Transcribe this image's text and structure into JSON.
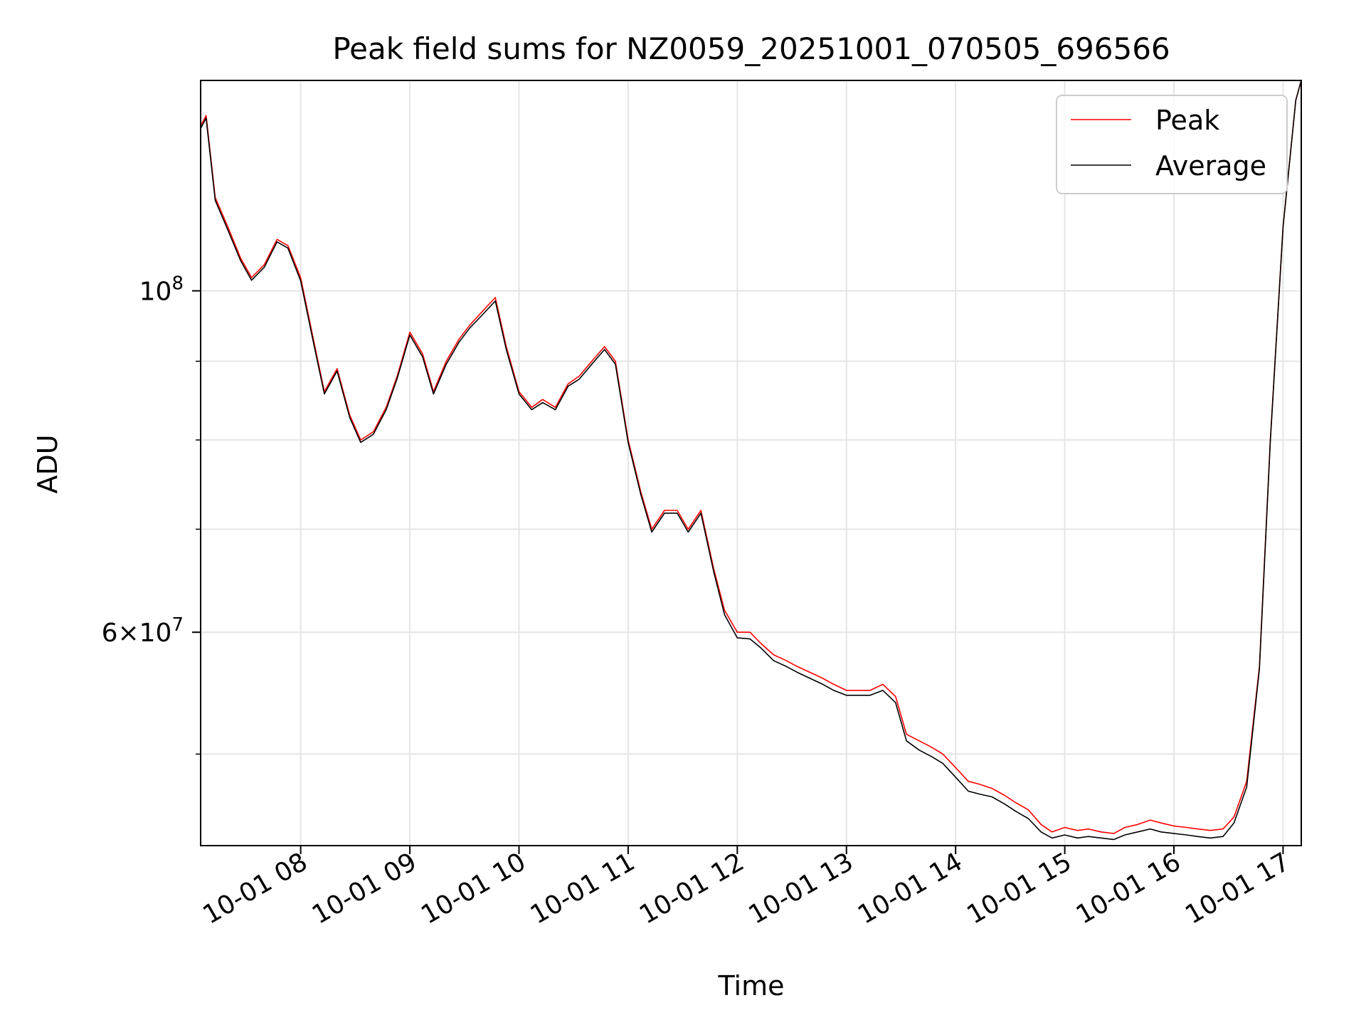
{
  "chart_data": {
    "type": "line",
    "title": "Peak field sums for NZ0059_20251001_070505_696566",
    "xlabel": "Time",
    "ylabel": "ADU",
    "y_scale": "log",
    "xlim": [
      "2025-10-01 07:05",
      "2025-10-01 17:10"
    ],
    "ylim": [
      43600000,
      137000000
    ],
    "x_tick_labels": [
      "10-01 08",
      "10-01 09",
      "10-01 10",
      "10-01 11",
      "10-01 12",
      "10-01 13",
      "10-01 14",
      "10-01 15",
      "10-01 16",
      "10-01 17"
    ],
    "y_tick_labels": [
      {
        "value": 100000000,
        "base": "10",
        "exp": "8",
        "coef": ""
      },
      {
        "value": 60000000,
        "base": "10",
        "exp": "7",
        "coef": "6×"
      }
    ],
    "y_minor_ticks": [
      50000000,
      70000000,
      80000000,
      90000000
    ],
    "grid": true,
    "legend_position": "top-right",
    "series": [
      {
        "name": "Peak",
        "color": "#ff0000",
        "x": [
          "2025-10-01 07:05",
          "2025-10-01 07:08",
          "2025-10-01 07:13",
          "2025-10-01 07:20",
          "2025-10-01 07:27",
          "2025-10-01 07:33",
          "2025-10-01 07:40",
          "2025-10-01 07:47",
          "2025-10-01 07:53",
          "2025-10-01 08:00",
          "2025-10-01 08:07",
          "2025-10-01 08:13",
          "2025-10-01 08:20",
          "2025-10-01 08:27",
          "2025-10-01 08:33",
          "2025-10-01 08:40",
          "2025-10-01 08:47",
          "2025-10-01 08:53",
          "2025-10-01 09:00",
          "2025-10-01 09:07",
          "2025-10-01 09:13",
          "2025-10-01 09:20",
          "2025-10-01 09:27",
          "2025-10-01 09:33",
          "2025-10-01 09:40",
          "2025-10-01 09:47",
          "2025-10-01 09:53",
          "2025-10-01 10:00",
          "2025-10-01 10:07",
          "2025-10-01 10:13",
          "2025-10-01 10:20",
          "2025-10-01 10:27",
          "2025-10-01 10:33",
          "2025-10-01 10:40",
          "2025-10-01 10:47",
          "2025-10-01 10:53",
          "2025-10-01 11:00",
          "2025-10-01 11:07",
          "2025-10-01 11:13",
          "2025-10-01 11:20",
          "2025-10-01 11:27",
          "2025-10-01 11:33",
          "2025-10-01 11:40",
          "2025-10-01 11:47",
          "2025-10-01 11:53",
          "2025-10-01 12:00",
          "2025-10-01 12:07",
          "2025-10-01 12:13",
          "2025-10-01 12:20",
          "2025-10-01 12:27",
          "2025-10-01 12:33",
          "2025-10-01 12:40",
          "2025-10-01 12:47",
          "2025-10-01 12:53",
          "2025-10-01 13:00",
          "2025-10-01 13:07",
          "2025-10-01 13:13",
          "2025-10-01 13:20",
          "2025-10-01 13:27",
          "2025-10-01 13:33",
          "2025-10-01 13:40",
          "2025-10-01 13:47",
          "2025-10-01 13:53",
          "2025-10-01 14:00",
          "2025-10-01 14:07",
          "2025-10-01 14:13",
          "2025-10-01 14:20",
          "2025-10-01 14:27",
          "2025-10-01 14:33",
          "2025-10-01 14:40",
          "2025-10-01 14:47",
          "2025-10-01 14:53",
          "2025-10-01 15:00",
          "2025-10-01 15:07",
          "2025-10-01 15:13",
          "2025-10-01 15:20",
          "2025-10-01 15:27",
          "2025-10-01 15:33",
          "2025-10-01 15:40",
          "2025-10-01 15:47",
          "2025-10-01 15:53",
          "2025-10-01 16:00",
          "2025-10-01 16:07",
          "2025-10-01 16:13",
          "2025-10-01 16:20",
          "2025-10-01 16:27",
          "2025-10-01 16:33",
          "2025-10-01 16:40",
          "2025-10-01 16:47",
          "2025-10-01 16:53",
          "2025-10-01 17:00",
          "2025-10-01 17:07",
          "2025-10-01 17:10"
        ],
        "y": [
          128000000,
          130000000,
          115000000,
          110000000,
          105000000,
          102000000,
          104000000,
          108000000,
          107000000,
          102000000,
          93000000,
          86000000,
          89000000,
          83000000,
          80000000,
          81000000,
          84000000,
          88000000,
          94000000,
          91000000,
          86000000,
          90000000,
          93000000,
          95000000,
          97000000,
          99000000,
          92000000,
          86000000,
          84000000,
          85000000,
          84000000,
          87000000,
          88000000,
          90000000,
          92000000,
          90000000,
          80000000,
          74000000,
          70000000,
          72000000,
          72000000,
          70000000,
          72000000,
          66000000,
          62000000,
          60000000,
          60000000,
          59000000,
          58000000,
          57500000,
          57000000,
          56500000,
          56000000,
          55500000,
          55000000,
          55000000,
          55000000,
          55500000,
          54500000,
          51500000,
          51000000,
          50500000,
          50000000,
          49000000,
          48000000,
          47800000,
          47500000,
          47000000,
          46500000,
          46000000,
          45000000,
          44500000,
          44800000,
          44600000,
          44700000,
          44500000,
          44400000,
          44800000,
          45000000,
          45300000,
          45100000,
          44900000,
          44800000,
          44700000,
          44600000,
          44700000,
          45500000,
          48000000,
          57000000,
          80000000,
          110000000,
          133000000,
          137000000
        ]
      },
      {
        "name": "Average",
        "color": "#000000",
        "x": [
          "2025-10-01 07:05",
          "2025-10-01 07:08",
          "2025-10-01 07:13",
          "2025-10-01 07:20",
          "2025-10-01 07:27",
          "2025-10-01 07:33",
          "2025-10-01 07:40",
          "2025-10-01 07:47",
          "2025-10-01 07:53",
          "2025-10-01 08:00",
          "2025-10-01 08:07",
          "2025-10-01 08:13",
          "2025-10-01 08:20",
          "2025-10-01 08:27",
          "2025-10-01 08:33",
          "2025-10-01 08:40",
          "2025-10-01 08:47",
          "2025-10-01 08:53",
          "2025-10-01 09:00",
          "2025-10-01 09:07",
          "2025-10-01 09:13",
          "2025-10-01 09:20",
          "2025-10-01 09:27",
          "2025-10-01 09:33",
          "2025-10-01 09:40",
          "2025-10-01 09:47",
          "2025-10-01 09:53",
          "2025-10-01 10:00",
          "2025-10-01 10:07",
          "2025-10-01 10:13",
          "2025-10-01 10:20",
          "2025-10-01 10:27",
          "2025-10-01 10:33",
          "2025-10-01 10:40",
          "2025-10-01 10:47",
          "2025-10-01 10:53",
          "2025-10-01 11:00",
          "2025-10-01 11:07",
          "2025-10-01 11:13",
          "2025-10-01 11:20",
          "2025-10-01 11:27",
          "2025-10-01 11:33",
          "2025-10-01 11:40",
          "2025-10-01 11:47",
          "2025-10-01 11:53",
          "2025-10-01 12:00",
          "2025-10-01 12:07",
          "2025-10-01 12:13",
          "2025-10-01 12:20",
          "2025-10-01 12:27",
          "2025-10-01 12:33",
          "2025-10-01 12:40",
          "2025-10-01 12:47",
          "2025-10-01 12:53",
          "2025-10-01 13:00",
          "2025-10-01 13:07",
          "2025-10-01 13:13",
          "2025-10-01 13:20",
          "2025-10-01 13:27",
          "2025-10-01 13:33",
          "2025-10-01 13:40",
          "2025-10-01 13:47",
          "2025-10-01 13:53",
          "2025-10-01 14:00",
          "2025-10-01 14:07",
          "2025-10-01 14:13",
          "2025-10-01 14:20",
          "2025-10-01 14:27",
          "2025-10-01 14:33",
          "2025-10-01 14:40",
          "2025-10-01 14:47",
          "2025-10-01 14:53",
          "2025-10-01 15:00",
          "2025-10-01 15:07",
          "2025-10-01 15:13",
          "2025-10-01 15:20",
          "2025-10-01 15:27",
          "2025-10-01 15:33",
          "2025-10-01 15:40",
          "2025-10-01 15:47",
          "2025-10-01 15:53",
          "2025-10-01 16:00",
          "2025-10-01 16:07",
          "2025-10-01 16:13",
          "2025-10-01 16:20",
          "2025-10-01 16:27",
          "2025-10-01 16:33",
          "2025-10-01 16:40",
          "2025-10-01 16:47",
          "2025-10-01 16:53",
          "2025-10-01 17:00",
          "2025-10-01 17:07",
          "2025-10-01 17:10"
        ],
        "y": [
          127500000,
          129500000,
          114500000,
          109500000,
          104600000,
          101600000,
          103600000,
          107600000,
          106600000,
          101500000,
          92600000,
          85700000,
          88700000,
          82700000,
          79700000,
          80700000,
          83700000,
          87700000,
          93600000,
          90600000,
          85700000,
          89600000,
          92600000,
          94600000,
          96500000,
          98500000,
          91600000,
          85700000,
          83700000,
          84600000,
          83700000,
          86700000,
          87600000,
          89600000,
          91600000,
          89600000,
          79700000,
          73700000,
          69700000,
          71700000,
          71700000,
          69700000,
          71700000,
          65700000,
          61600000,
          59500000,
          59400000,
          58600000,
          57500000,
          57000000,
          56500000,
          56000000,
          55500000,
          55000000,
          54600000,
          54600000,
          54600000,
          55000000,
          54000000,
          51000000,
          50300000,
          49800000,
          49300000,
          48300000,
          47300000,
          47100000,
          46900000,
          46400000,
          45900000,
          45400000,
          44500000,
          44100000,
          44300000,
          44100000,
          44200000,
          44100000,
          44000000,
          44300000,
          44500000,
          44700000,
          44500000,
          44400000,
          44300000,
          44200000,
          44100000,
          44200000,
          45100000,
          47600000,
          56800000,
          79800000,
          110000000,
          133000000,
          137000000
        ]
      }
    ]
  }
}
